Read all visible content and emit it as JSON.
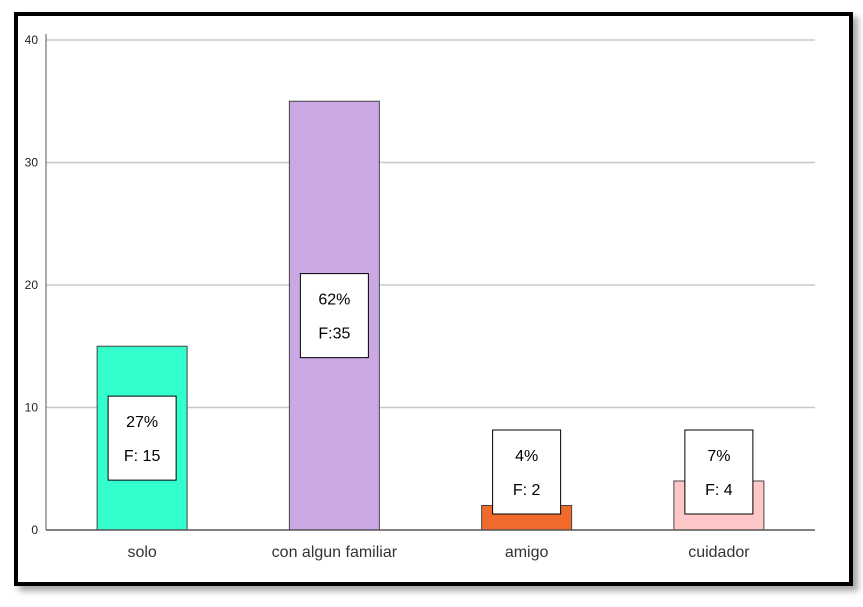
{
  "chart_data": {
    "type": "bar",
    "categories": [
      "solo",
      "con algun familiar",
      "amigo",
      "cuidador"
    ],
    "values": [
      15,
      35,
      2,
      4
    ],
    "data_labels": [
      {
        "percent": "27%",
        "freq": "F: 15"
      },
      {
        "percent": "62%",
        "freq": "F:35"
      },
      {
        "percent": "4%",
        "freq": "F: 2"
      },
      {
        "percent": "7%",
        "freq": "F: 4"
      }
    ],
    "colors": [
      "#33ffcc",
      "#c9a8e4",
      "#f06a2c",
      "#ffc7c7"
    ],
    "ylim": [
      0,
      40
    ],
    "yticks": [
      0,
      10,
      20,
      30,
      40
    ],
    "grid": true,
    "title": "",
    "xlabel": "",
    "ylabel": ""
  }
}
